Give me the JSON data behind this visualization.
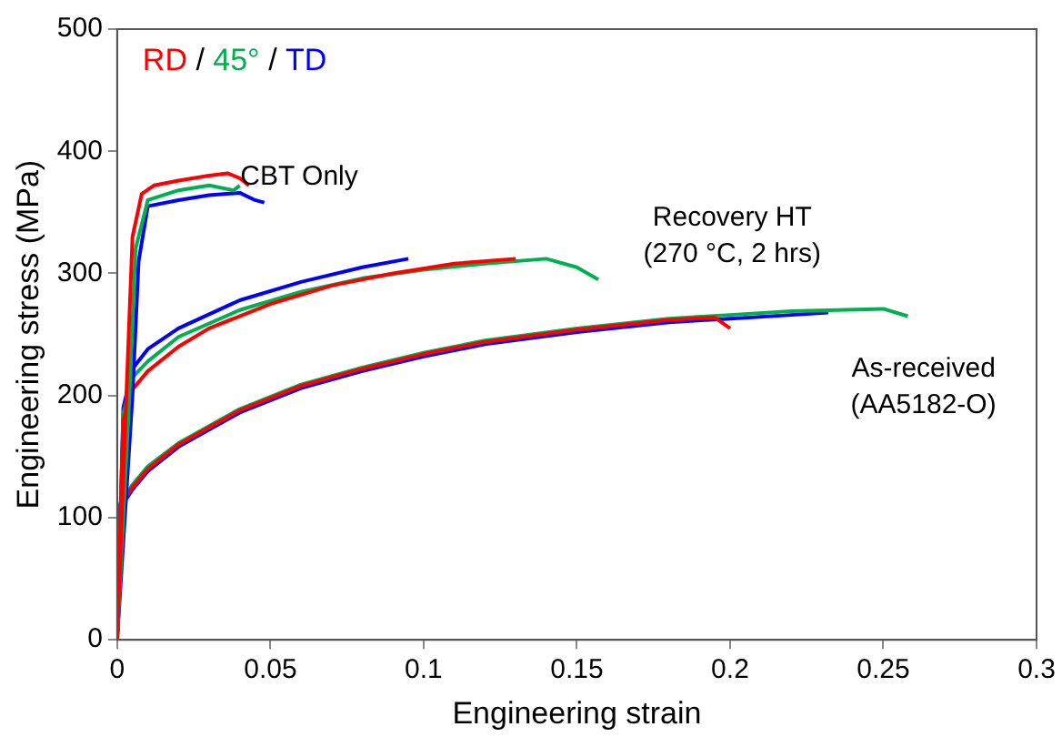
{
  "chart_data": {
    "type": "line",
    "xlabel": "Engineering strain",
    "ylabel": "Engineering stress (MPa)",
    "xlim": [
      0,
      0.3
    ],
    "xticks": [
      0,
      0.05,
      0.1,
      0.15,
      0.2,
      0.25,
      0.3
    ],
    "ylim": [
      0,
      500
    ],
    "yticks": [
      0,
      100,
      200,
      300,
      400,
      500
    ],
    "grid": false,
    "legend": "top left",
    "marker": "none",
    "line_style": "solid",
    "legend_title": "/",
    "annotations": [
      "CBT Only",
      "Recovery HT\n(270 °C, 2 hrs)",
      "As-received\n(AA5182-O)"
    ],
    "series": [
      {
        "name": "RD",
        "color": "#ff0000",
        "x": [
          0,
          0.003,
          0.005,
          0.008,
          0.012,
          0.02,
          0.03,
          0.036,
          0.04,
          0.043
        ],
        "values": [
          0,
          200,
          330,
          365,
          372,
          376,
          380,
          382,
          378,
          372
        ]
      },
      {
        "name": "45°",
        "color": "#00b050",
        "x": [
          0,
          0.004,
          0.006,
          0.01,
          0.02,
          0.03,
          0.038,
          0.04
        ],
        "values": [
          0,
          200,
          320,
          360,
          368,
          372,
          368,
          372
        ]
      },
      {
        "name": "TD",
        "color": "#0000ff",
        "x": [
          0,
          0.005,
          0.007,
          0.01,
          0.02,
          0.03,
          0.04,
          0.045,
          0.048
        ],
        "values": [
          0,
          200,
          310,
          355,
          360,
          364,
          366,
          360,
          358
        ]
      },
      {
        "color": "#ff0000",
        "x": [
          0,
          0.002,
          0.005,
          0.01,
          0.02,
          0.03,
          0.05,
          0.07,
          0.09,
          0.11,
          0.13
        ],
        "values": [
          0,
          180,
          205,
          220,
          240,
          255,
          275,
          290,
          300,
          308,
          312
        ]
      },
      {
        "color": "#00b050",
        "x": [
          0,
          0.002,
          0.005,
          0.01,
          0.02,
          0.04,
          0.06,
          0.08,
          0.1,
          0.12,
          0.14,
          0.15,
          0.157
        ],
        "values": [
          0,
          185,
          215,
          228,
          248,
          270,
          285,
          296,
          303,
          308,
          312,
          305,
          295
        ]
      },
      {
        "color": "#0000ff",
        "x": [
          0,
          0.002,
          0.005,
          0.01,
          0.02,
          0.04,
          0.06,
          0.08,
          0.095
        ],
        "values": [
          0,
          190,
          222,
          238,
          255,
          278,
          293,
          305,
          312
        ]
      },
      {
        "color": "#ff0000",
        "x": [
          0,
          0.001,
          0.005,
          0.01,
          0.02,
          0.04,
          0.06,
          0.08,
          0.1,
          0.12,
          0.15,
          0.18,
          0.195,
          0.2
        ],
        "values": [
          0,
          110,
          125,
          140,
          160,
          188,
          208,
          222,
          234,
          244,
          254,
          262,
          264,
          255
        ]
      },
      {
        "color": "#00b050",
        "x": [
          0,
          0.001,
          0.005,
          0.01,
          0.02,
          0.04,
          0.06,
          0.08,
          0.1,
          0.12,
          0.15,
          0.18,
          0.2,
          0.22,
          0.25,
          0.258
        ],
        "values": [
          0,
          112,
          127,
          142,
          161,
          189,
          209,
          223,
          235,
          245,
          255,
          263,
          266,
          269,
          271,
          265
        ]
      },
      {
        "color": "#0000ff",
        "x": [
          0,
          0.001,
          0.005,
          0.01,
          0.02,
          0.04,
          0.06,
          0.08,
          0.1,
          0.12,
          0.15,
          0.18,
          0.2,
          0.22,
          0.232
        ],
        "values": [
          0,
          108,
          123,
          138,
          158,
          186,
          206,
          220,
          232,
          242,
          252,
          260,
          263,
          266,
          268
        ]
      }
    ]
  }
}
